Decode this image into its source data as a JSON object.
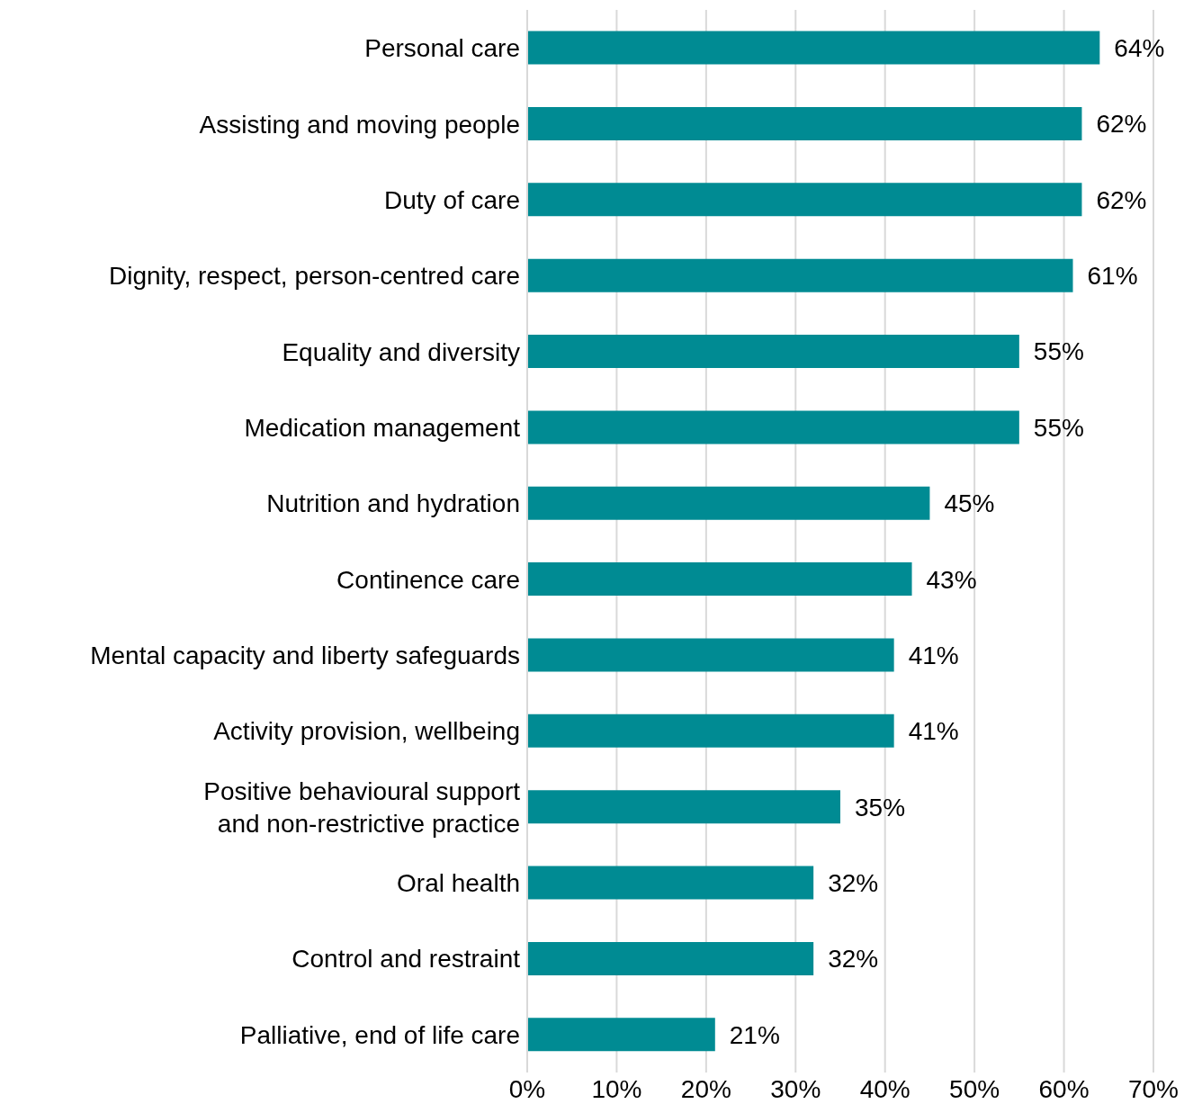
{
  "chart_data": {
    "type": "bar",
    "orientation": "horizontal",
    "categories": [
      "Personal care",
      "Assisting and moving people",
      "Duty of care",
      "Dignity, respect, person-centred care",
      "Equality and diversity",
      "Medication management",
      "Nutrition and hydration",
      "Continence care",
      "Mental capacity and liberty safeguards",
      "Activity provision, wellbeing",
      "Positive behavioural support and non-restrictive practice",
      "Oral health",
      "Control and restraint",
      "Palliative, end of life care"
    ],
    "values": [
      64,
      62,
      62,
      61,
      55,
      55,
      45,
      43,
      41,
      41,
      35,
      32,
      32,
      21
    ],
    "value_labels": [
      "64%",
      "62%",
      "62%",
      "61%",
      "55%",
      "55%",
      "45%",
      "43%",
      "41%",
      "41%",
      "35%",
      "32%",
      "32%",
      "21%"
    ],
    "color": "#008b93",
    "xlim": [
      0,
      70
    ],
    "xticks": [
      {
        "value": 0,
        "label": "0%"
      },
      {
        "value": 10,
        "label": "10%"
      },
      {
        "value": 20,
        "label": "20%"
      },
      {
        "value": 30,
        "label": "30%"
      },
      {
        "value": 40,
        "label": "40%"
      },
      {
        "value": 50,
        "label": "50%"
      },
      {
        "value": 60,
        "label": "60%"
      },
      {
        "value": 70,
        "label": "70%"
      }
    ],
    "grid": "x",
    "legend": false
  }
}
